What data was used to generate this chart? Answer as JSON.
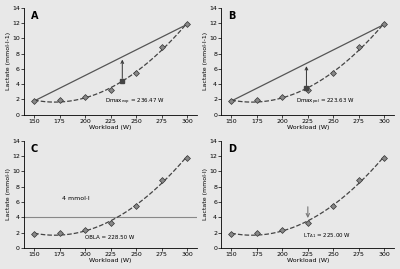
{
  "workloads": [
    150,
    175,
    200,
    225,
    250,
    275,
    300
  ],
  "lactate": [
    1.8,
    1.9,
    2.3,
    3.2,
    5.5,
    8.8,
    11.8
  ],
  "xlim": [
    140,
    310
  ],
  "ylim": [
    0,
    14
  ],
  "yticks": [
    0,
    2,
    4,
    6,
    8,
    10,
    12,
    14
  ],
  "xticks": [
    150,
    175,
    200,
    225,
    250,
    275,
    300
  ],
  "xlabel": "Workload (W)",
  "ylabel_AB": "Lactate (mmol·l-1)",
  "ylabel_CD": "Lactate (mmol·l)",
  "panel_labels": [
    "A",
    "B",
    "C",
    "D"
  ],
  "dmax_exp": 236.47,
  "dmax_pol": 223.63,
  "obla_y": 4.0,
  "lt_d1_x": 225.0,
  "bg_color": "#e8e8e8",
  "fig_color": "#e8e8e8",
  "line_gray": "#888888"
}
